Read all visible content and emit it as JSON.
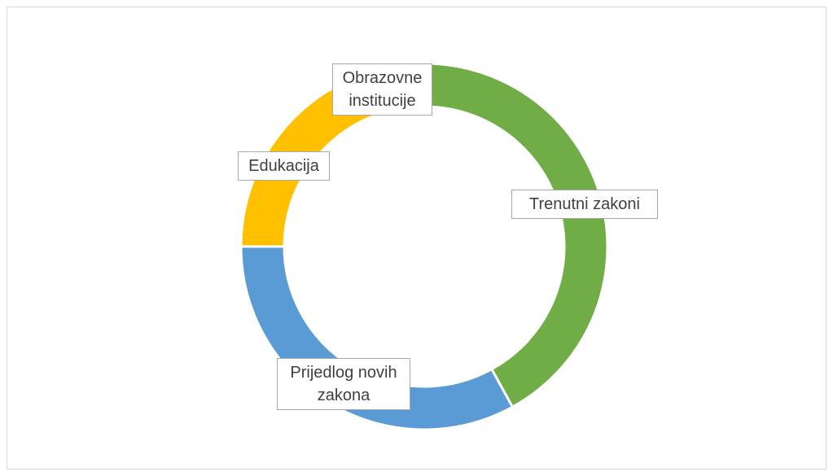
{
  "chart_data": {
    "type": "donut",
    "categories": [
      "Trenutni zakoni",
      "Prijedlog novih zakona",
      "Edukacija",
      "Obrazovne institucije"
    ],
    "values": [
      42,
      33,
      19,
      6
    ],
    "colors": [
      "#70ad47",
      "#5b9bd5",
      "#ffc000",
      "#43682b"
    ]
  }
}
